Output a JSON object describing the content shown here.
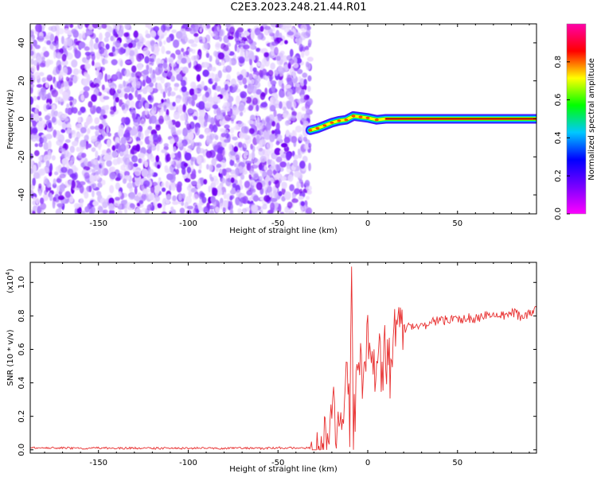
{
  "figure": {
    "title": "C2E3.2023.248.21.44.R01"
  },
  "chart_data": [
    {
      "type": "heatmap",
      "title": "C2E3.2023.248.21.44.R01",
      "xlabel": "Height of straight line (km)",
      "ylabel": "Frequency (Hz)",
      "xlim": [
        -188,
        94
      ],
      "ylim": [
        -50,
        50
      ],
      "xticks": [
        -150,
        -100,
        -50,
        0,
        50
      ],
      "yticks": [
        -40,
        -20,
        0,
        20,
        40
      ],
      "colorbar": {
        "label": "Normalized spectral amplitude",
        "range": [
          0,
          1
        ],
        "ticks": [
          0.0,
          0.2,
          0.4,
          0.6,
          0.8
        ],
        "colormap": [
          "#ff00ff",
          "#7a00ff",
          "#0000ff",
          "#00c8ff",
          "#00ff00",
          "#ffff00",
          "#ff0000",
          "#ff00aa"
        ]
      },
      "noise_region": {
        "x_range": [
          -188,
          -32
        ],
        "freq_range": [
          -50,
          50
        ],
        "amplitude": 0.05
      },
      "signal_track": [
        {
          "x": -32,
          "freq": -6
        },
        {
          "x": -28,
          "freq": -5
        },
        {
          "x": -24,
          "freq": -3.5
        },
        {
          "x": -20,
          "freq": -2
        },
        {
          "x": -16,
          "freq": -1
        },
        {
          "x": -12,
          "freq": -0.5
        },
        {
          "x": -8,
          "freq": 1.5
        },
        {
          "x": -4,
          "freq": 1
        },
        {
          "x": 0,
          "freq": 0.5
        },
        {
          "x": 5,
          "freq": -0.5
        },
        {
          "x": 10,
          "freq": 0
        },
        {
          "x": 20,
          "freq": 0
        },
        {
          "x": 40,
          "freq": 0
        },
        {
          "x": 60,
          "freq": 0
        },
        {
          "x": 80,
          "freq": 0
        },
        {
          "x": 94,
          "freq": 0
        }
      ],
      "signal_color_main": "#ff0000",
      "signal_color_edge": "#00c8ff"
    },
    {
      "type": "line",
      "xlabel": "Height of straight line (km)",
      "ylabel": "SNR (10 * v/v)",
      "y_multiplier": "(x10^4)",
      "xlim": [
        -188,
        94
      ],
      "ylim": [
        -0.02,
        1.12
      ],
      "xticks": [
        -150,
        -100,
        -50,
        0,
        50
      ],
      "yticks": [
        0.0,
        0.2,
        0.4,
        0.6,
        0.8,
        1.0
      ],
      "series": [
        {
          "color": "#e83030",
          "x": [
            -188,
            -180,
            -170,
            -160,
            -150,
            -140,
            -130,
            -120,
            -110,
            -100,
            -90,
            -80,
            -70,
            -60,
            -50,
            -40,
            -30,
            -25,
            -22,
            -20,
            -18,
            -16,
            -14,
            -12,
            -10,
            -9,
            -8,
            -6,
            -4,
            -2,
            0,
            2,
            4,
            6,
            8,
            10,
            12,
            15,
            20,
            25,
            30,
            35,
            40,
            45,
            50,
            55,
            60,
            65,
            70,
            75,
            80,
            85,
            90,
            94
          ],
          "values": [
            0.012,
            0.01,
            0.012,
            0.008,
            0.011,
            0.009,
            0.01,
            0.009,
            0.01,
            0.008,
            0.011,
            0.009,
            0.01,
            0.008,
            0.012,
            0.01,
            0.012,
            0.03,
            0.18,
            0.42,
            0.08,
            0.35,
            0.12,
            0.6,
            0.15,
            1.13,
            0.25,
            0.55,
            0.62,
            0.45,
            0.7,
            0.62,
            0.52,
            0.72,
            0.48,
            0.66,
            0.6,
            0.71,
            0.72,
            0.75,
            0.74,
            0.76,
            0.77,
            0.78,
            0.78,
            0.79,
            0.78,
            0.8,
            0.79,
            0.8,
            0.82,
            0.8,
            0.81,
            0.85
          ]
        }
      ]
    }
  ],
  "labels": {
    "top_ylabel": "Frequency (Hz)",
    "top_xlabel": "Height of straight line (km)",
    "bottom_ylabel": "SNR (10 * v/v)",
    "bottom_xlabel": "Height of straight line (km)",
    "colorbar_label": "Normalized spectral amplitude",
    "bottom_multiplier_base": "(x10",
    "bottom_multiplier_exp": "4",
    "bottom_multiplier_close": ")"
  }
}
